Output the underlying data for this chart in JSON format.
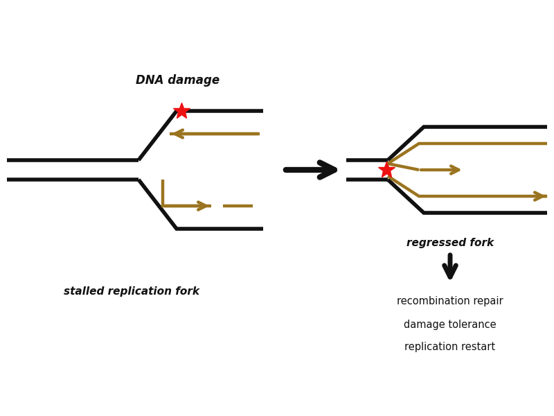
{
  "bg_color": "#ffffff",
  "black_color": "#111111",
  "brown_color": "#9B7420",
  "red_color": "#ee1111",
  "lw_black": 4.0,
  "lw_brown": 3.2,
  "dna_damage_label": "DNA damage",
  "stalled_label": "stalled replication fork",
  "regressed_label": "regressed fork",
  "outcome_lines": [
    "recombination repair",
    "damage tolerance",
    "replication restart"
  ],
  "figsize": [
    8.0,
    6.0
  ],
  "dpi": 100
}
